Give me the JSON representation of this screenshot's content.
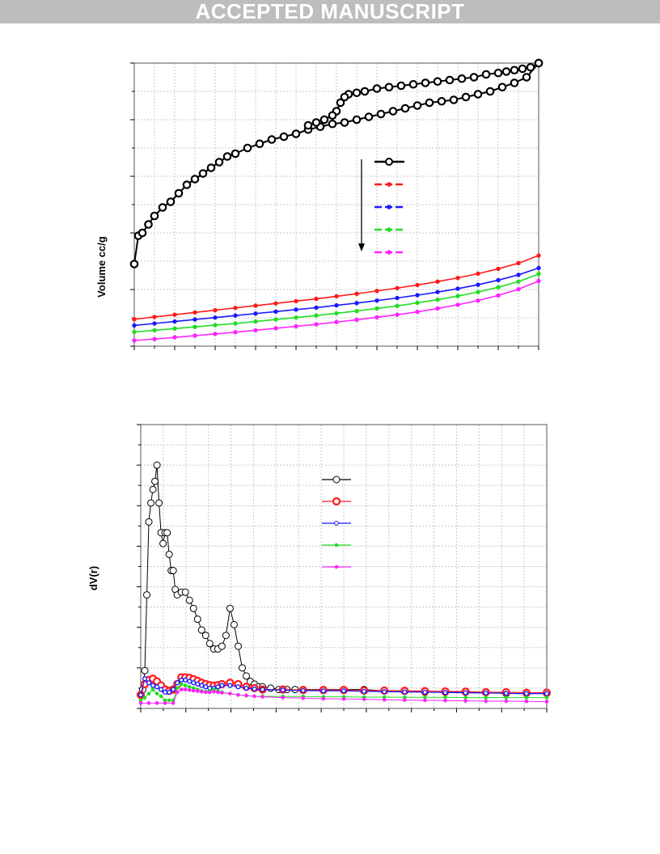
{
  "banner": {
    "text": "ACCEPTED MANUSCRIPT"
  },
  "figure1": {
    "ylabel": "Volume cc/g"
  },
  "figure2": {
    "ylabel": "dV(r)"
  },
  "colors": {
    "black": "#000000",
    "red": "#ff1a1a",
    "blue": "#1a1aff",
    "green": "#22dd22",
    "magenta": "#ff22ff"
  },
  "chart_data": [
    {
      "type": "line",
      "title": "",
      "xlabel": "",
      "ylabel": "Volume cc/g",
      "xlim": [
        0,
        1
      ],
      "ylim": [
        0,
        100
      ],
      "grid": true,
      "legend": "center-right, with downward arrow",
      "series": [
        {
          "color": "#000000",
          "style": "adsorption",
          "x": [
            0.0,
            0.01,
            0.02,
            0.035,
            0.05,
            0.07,
            0.09,
            0.11,
            0.13,
            0.15,
            0.17,
            0.19,
            0.21,
            0.23,
            0.25,
            0.28,
            0.31,
            0.34,
            0.37,
            0.4,
            0.43,
            0.46,
            0.49,
            0.52,
            0.55,
            0.58,
            0.61,
            0.64,
            0.67,
            0.7,
            0.73,
            0.76,
            0.79,
            0.82,
            0.85,
            0.88,
            0.91,
            0.94,
            0.97,
            1.0
          ],
          "y": [
            29,
            39,
            40,
            43,
            46,
            49,
            51,
            54,
            57,
            59,
            61,
            63,
            65,
            67,
            68,
            70,
            71.5,
            73,
            74,
            75,
            76.5,
            77.5,
            78.5,
            79,
            80,
            81,
            82,
            83,
            84,
            85,
            86,
            86.5,
            87,
            88,
            89,
            90,
            91.5,
            93,
            95,
            100
          ]
        },
        {
          "color": "#000000",
          "style": "desorption",
          "x": [
            1.0,
            0.98,
            0.96,
            0.94,
            0.92,
            0.9,
            0.87,
            0.84,
            0.81,
            0.78,
            0.75,
            0.72,
            0.69,
            0.66,
            0.63,
            0.6,
            0.57,
            0.55,
            0.53,
            0.52,
            0.51,
            0.5,
            0.49,
            0.47,
            0.45,
            0.43
          ],
          "y": [
            100,
            98.5,
            98,
            97.5,
            97,
            96.5,
            96,
            95,
            94.5,
            94,
            93.5,
            93,
            92.5,
            92,
            91.5,
            91,
            90,
            89.5,
            89,
            88,
            86,
            83,
            81.5,
            80,
            79,
            78
          ]
        },
        {
          "color": "#ff1a1a",
          "style": "dashed",
          "x": [
            0.0,
            0.05,
            0.1,
            0.15,
            0.2,
            0.25,
            0.3,
            0.35,
            0.4,
            0.45,
            0.5,
            0.55,
            0.6,
            0.65,
            0.7,
            0.75,
            0.8,
            0.85,
            0.9,
            0.95,
            1.0
          ],
          "y": [
            9.5,
            10.3,
            11.1,
            11.9,
            12.7,
            13.5,
            14.3,
            15.1,
            15.9,
            16.7,
            17.6,
            18.5,
            19.5,
            20.5,
            21.6,
            22.8,
            24.1,
            25.6,
            27.3,
            29.3,
            32
          ]
        },
        {
          "color": "#1a1aff",
          "style": "dashed",
          "x": [
            0.0,
            0.05,
            0.1,
            0.15,
            0.2,
            0.25,
            0.3,
            0.35,
            0.4,
            0.45,
            0.5,
            0.55,
            0.6,
            0.65,
            0.7,
            0.75,
            0.8,
            0.85,
            0.9,
            0.95,
            1.0
          ],
          "y": [
            7.3,
            8.0,
            8.7,
            9.4,
            10.1,
            10.8,
            11.5,
            12.2,
            12.9,
            13.6,
            14.4,
            15.2,
            16.1,
            17.0,
            18.0,
            19.1,
            20.3,
            21.7,
            23.3,
            25.2,
            27.6
          ]
        },
        {
          "color": "#22dd22",
          "style": "dashed",
          "x": [
            0.0,
            0.05,
            0.1,
            0.15,
            0.2,
            0.25,
            0.3,
            0.35,
            0.4,
            0.45,
            0.5,
            0.55,
            0.6,
            0.65,
            0.7,
            0.75,
            0.8,
            0.85,
            0.9,
            0.95,
            1.0
          ],
          "y": [
            5.0,
            5.6,
            6.2,
            6.8,
            7.4,
            8.0,
            8.7,
            9.4,
            10.1,
            10.8,
            11.6,
            12.4,
            13.3,
            14.2,
            15.3,
            16.4,
            17.7,
            19.1,
            20.8,
            22.8,
            25.5
          ]
        },
        {
          "color": "#ff22ff",
          "style": "dashed",
          "x": [
            0.0,
            0.05,
            0.1,
            0.15,
            0.2,
            0.25,
            0.3,
            0.35,
            0.4,
            0.45,
            0.5,
            0.55,
            0.6,
            0.65,
            0.7,
            0.75,
            0.8,
            0.85,
            0.9,
            0.95,
            1.0
          ],
          "y": [
            2.0,
            2.5,
            3.1,
            3.7,
            4.3,
            4.9,
            5.6,
            6.3,
            7.0,
            7.7,
            8.5,
            9.3,
            10.2,
            11.1,
            12.1,
            13.3,
            14.6,
            16.1,
            17.9,
            20.1,
            23
          ]
        }
      ]
    },
    {
      "type": "line",
      "title": "",
      "xlabel": "",
      "ylabel": "dV(r)",
      "xlim": [
        0,
        1
      ],
      "ylim": [
        -0.05,
        1
      ],
      "grid": true,
      "legend": "upper-center",
      "series": [
        {
          "color": "#000000",
          "x": [
            0.0,
            0.005,
            0.01,
            0.015,
            0.02,
            0.025,
            0.03,
            0.035,
            0.04,
            0.045,
            0.05,
            0.055,
            0.06,
            0.065,
            0.07,
            0.075,
            0.08,
            0.085,
            0.09,
            0.1,
            0.11,
            0.12,
            0.13,
            0.14,
            0.15,
            0.16,
            0.17,
            0.18,
            0.19,
            0.2,
            0.21,
            0.22,
            0.23,
            0.24,
            0.25,
            0.26,
            0.27,
            0.28,
            0.29,
            0.3,
            0.32,
            0.34,
            0.36,
            0.38,
            0.4,
            0.45,
            0.5,
            0.55,
            0.6,
            0.65,
            0.7,
            0.75,
            0.8,
            0.85,
            0.9,
            0.95,
            1.0
          ],
          "y": [
            0.0,
            0.02,
            0.09,
            0.37,
            0.64,
            0.71,
            0.76,
            0.79,
            0.85,
            0.71,
            0.6,
            0.56,
            0.6,
            0.6,
            0.52,
            0.46,
            0.46,
            0.39,
            0.37,
            0.38,
            0.38,
            0.35,
            0.32,
            0.28,
            0.24,
            0.22,
            0.19,
            0.17,
            0.17,
            0.18,
            0.22,
            0.32,
            0.26,
            0.18,
            0.1,
            0.07,
            0.05,
            0.04,
            0.03,
            0.03,
            0.025,
            0.02,
            0.02,
            0.02,
            0.02,
            0.02,
            0.02,
            0.02,
            0.015,
            0.015,
            0.01,
            0.01,
            0.01,
            0.01,
            0.005,
            0.005,
            0.005
          ]
        },
        {
          "color": "#ff1a1a",
          "x": [
            0.0,
            0.01,
            0.02,
            0.03,
            0.04,
            0.05,
            0.06,
            0.07,
            0.08,
            0.09,
            0.1,
            0.11,
            0.12,
            0.13,
            0.14,
            0.15,
            0.16,
            0.17,
            0.18,
            0.19,
            0.2,
            0.22,
            0.24,
            0.26,
            0.28,
            0.3,
            0.35,
            0.4,
            0.45,
            0.5,
            0.55,
            0.6,
            0.65,
            0.7,
            0.75,
            0.8,
            0.85,
            0.9,
            0.95,
            1.0
          ],
          "y": [
            0.0,
            0.04,
            0.055,
            0.06,
            0.05,
            0.035,
            0.02,
            0.015,
            0.02,
            0.04,
            0.065,
            0.065,
            0.063,
            0.058,
            0.052,
            0.045,
            0.04,
            0.036,
            0.034,
            0.036,
            0.04,
            0.045,
            0.04,
            0.03,
            0.025,
            0.02,
            0.02,
            0.018,
            0.018,
            0.018,
            0.016,
            0.016,
            0.015,
            0.014,
            0.013,
            0.012,
            0.01,
            0.01,
            0.008,
            0.008
          ]
        },
        {
          "color": "#1a1aff",
          "x": [
            0.0,
            0.01,
            0.02,
            0.03,
            0.04,
            0.05,
            0.06,
            0.07,
            0.08,
            0.09,
            0.1,
            0.11,
            0.12,
            0.13,
            0.14,
            0.15,
            0.16,
            0.17,
            0.18,
            0.19,
            0.2,
            0.22,
            0.24,
            0.26,
            0.28,
            0.3,
            0.35,
            0.4,
            0.45,
            0.5,
            0.55,
            0.6,
            0.65,
            0.7,
            0.75,
            0.8,
            0.85,
            0.9,
            0.95,
            1.0
          ],
          "y": [
            0.0,
            0.06,
            0.045,
            0.035,
            0.03,
            0.02,
            0.01,
            0.01,
            0.02,
            0.045,
            0.055,
            0.055,
            0.05,
            0.045,
            0.04,
            0.035,
            0.03,
            0.025,
            0.025,
            0.03,
            0.035,
            0.035,
            0.03,
            0.025,
            0.022,
            0.02,
            0.018,
            0.016,
            0.015,
            0.015,
            0.013,
            0.012,
            0.011,
            0.01,
            0.009,
            0.008,
            0.007,
            0.006,
            0.005,
            0.005
          ]
        },
        {
          "color": "#22dd22",
          "x": [
            0.0,
            0.01,
            0.02,
            0.03,
            0.04,
            0.05,
            0.06,
            0.07,
            0.08,
            0.09,
            0.1,
            0.11,
            0.12,
            0.13,
            0.14,
            0.15,
            0.16,
            0.17,
            0.18,
            0.19,
            0.2,
            0.22,
            0.24,
            0.26,
            0.28,
            0.3,
            0.35,
            0.4,
            0.45,
            0.5,
            0.55,
            0.6,
            0.65,
            0.7,
            0.75,
            0.8,
            0.85,
            0.9,
            0.95,
            1.0
          ],
          "y": [
            -0.02,
            -0.01,
            0.005,
            0.02,
            0.005,
            -0.005,
            -0.02,
            -0.02,
            -0.02,
            0.025,
            0.04,
            0.035,
            0.03,
            0.025,
            0.02,
            0.015,
            0.012,
            0.015,
            0.02,
            0.015,
            0.01,
            0.005,
            0.0,
            -0.003,
            -0.005,
            -0.005,
            -0.006,
            -0.006,
            -0.007,
            -0.007,
            -0.008,
            -0.008,
            -0.009,
            -0.009,
            -0.009,
            -0.01,
            -0.01,
            -0.01,
            -0.01,
            -0.01
          ]
        },
        {
          "color": "#ff22ff",
          "x": [
            0.0,
            0.02,
            0.04,
            0.06,
            0.08,
            0.09,
            0.1,
            0.11,
            0.12,
            0.13,
            0.14,
            0.15,
            0.16,
            0.17,
            0.18,
            0.19,
            0.2,
            0.22,
            0.24,
            0.26,
            0.28,
            0.3,
            0.35,
            0.4,
            0.45,
            0.5,
            0.55,
            0.6,
            0.65,
            0.7,
            0.75,
            0.8,
            0.85,
            0.9,
            0.95,
            1.0
          ],
          "y": [
            -0.03,
            -0.03,
            -0.03,
            -0.03,
            -0.03,
            0.01,
            0.02,
            0.02,
            0.018,
            0.016,
            0.014,
            0.012,
            0.01,
            0.01,
            0.012,
            0.01,
            0.008,
            0.005,
            0.0,
            -0.002,
            -0.005,
            -0.007,
            -0.01,
            -0.012,
            -0.014,
            -0.015,
            -0.016,
            -0.018,
            -0.019,
            -0.02,
            -0.021,
            -0.022,
            -0.023,
            -0.023,
            -0.024,
            -0.025
          ]
        }
      ]
    }
  ]
}
